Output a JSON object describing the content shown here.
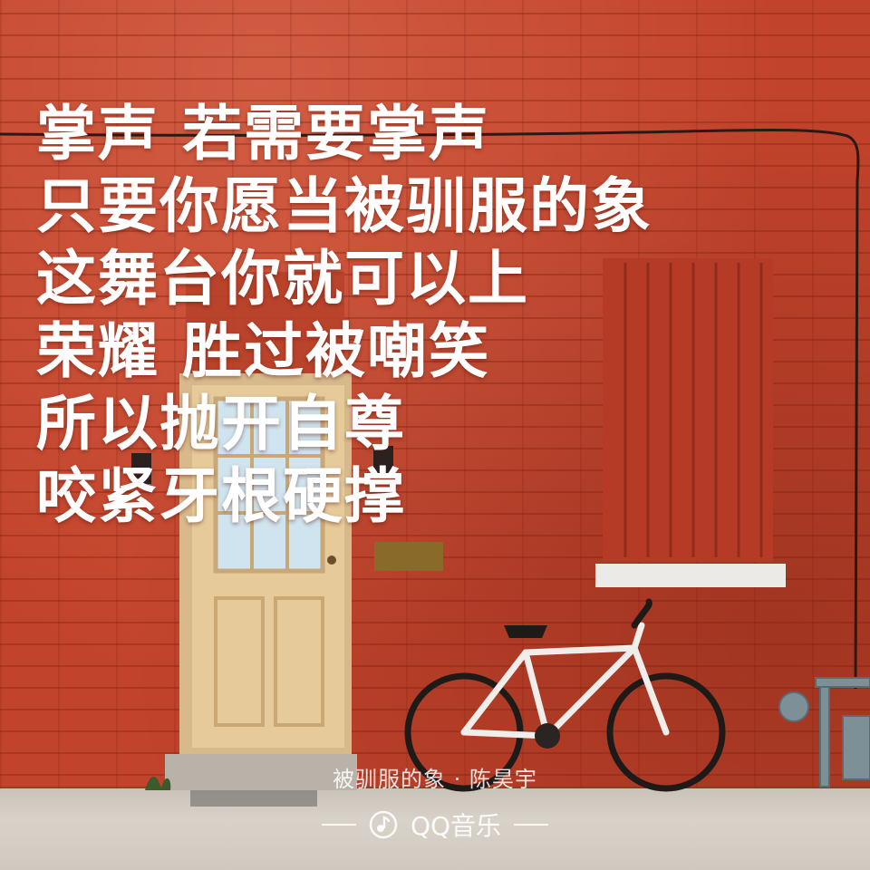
{
  "lyrics": [
    "掌声  若需要掌声",
    "只要你愿当被驯服的象",
    "这舞台你就可以上",
    "荣耀  胜过被嘲笑",
    "所以抛开自尊",
    "咬紧牙根硬撑"
  ],
  "caption": "被驯服的象 · 陈昊宇",
  "brand": "QQ音乐",
  "icons": {
    "logo": "qq-music-logo-icon"
  }
}
